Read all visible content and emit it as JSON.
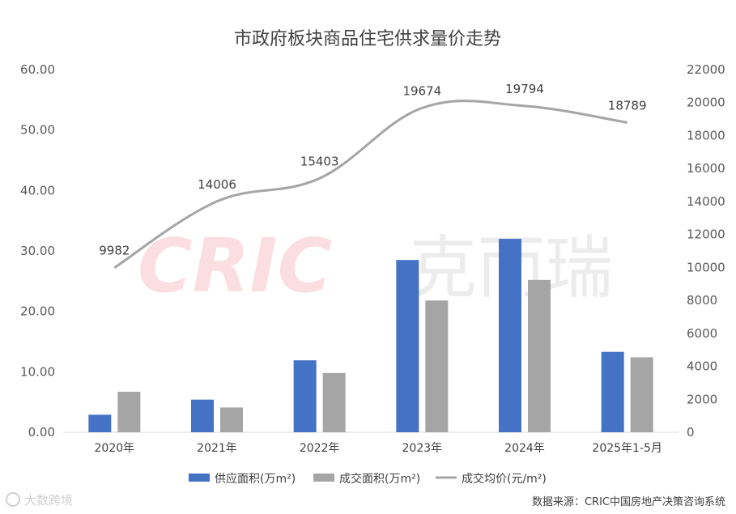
{
  "chart_data": {
    "type": "bar",
    "title": "市政府板块商品住宅供求量价走势",
    "categories": [
      "2020年",
      "2021年",
      "2022年",
      "2023年",
      "2024年",
      "2025年1-5月"
    ],
    "series": [
      {
        "name": "供应面积(万m²)",
        "type": "bar",
        "axis": "left",
        "color": "#4472C4",
        "values": [
          2.9,
          5.4,
          11.9,
          28.5,
          32.0,
          13.3
        ]
      },
      {
        "name": "成交面积(万m²)",
        "type": "bar",
        "axis": "left",
        "color": "#A5A5A5",
        "values": [
          6.7,
          4.1,
          9.8,
          21.8,
          25.2,
          12.4
        ]
      },
      {
        "name": "成交均价(元/m²)",
        "type": "line",
        "axis": "right",
        "color": "#A5A5A5",
        "values": [
          9982,
          14006,
          15403,
          19674,
          19794,
          18789
        ],
        "labels": [
          "9982",
          "14006",
          "15403",
          "19674",
          "19794",
          "18789"
        ]
      }
    ],
    "y_left": {
      "min": 0,
      "max": 60,
      "step": 10,
      "ticks": [
        "0.00",
        "10.00",
        "20.00",
        "30.00",
        "40.00",
        "50.00",
        "60.00"
      ]
    },
    "y_right": {
      "min": 0,
      "max": 22000,
      "step": 2000,
      "ticks": [
        "0",
        "2000",
        "4000",
        "6000",
        "8000",
        "10000",
        "12000",
        "14000",
        "16000",
        "18000",
        "20000",
        "22000"
      ]
    },
    "grid": false,
    "legend_position": "bottom"
  },
  "legend": [
    "供应面积(万m²)",
    "成交面积(万m²)",
    "成交均价(元/m²)"
  ],
  "source_note": "数据来源：CRIC中国房地产决策咨询系统",
  "watermark": {
    "text": "CRIC克而瑞"
  },
  "corner_logo": {
    "text": "大数跨境"
  }
}
